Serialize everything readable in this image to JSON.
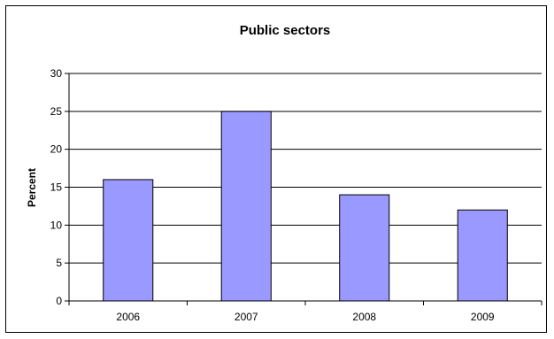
{
  "chart_data": {
    "type": "bar",
    "title": "Public sectors",
    "xlabel": "",
    "ylabel": "Percent",
    "categories": [
      "2006",
      "2007",
      "2008",
      "2009"
    ],
    "values": [
      16,
      25,
      14,
      12
    ],
    "ylim": [
      0,
      30
    ],
    "yticks": [
      0,
      5,
      10,
      15,
      20,
      25,
      30
    ],
    "grid": true,
    "legend": "none",
    "bar_color": "#9999ff",
    "edge_color": "#000000"
  }
}
